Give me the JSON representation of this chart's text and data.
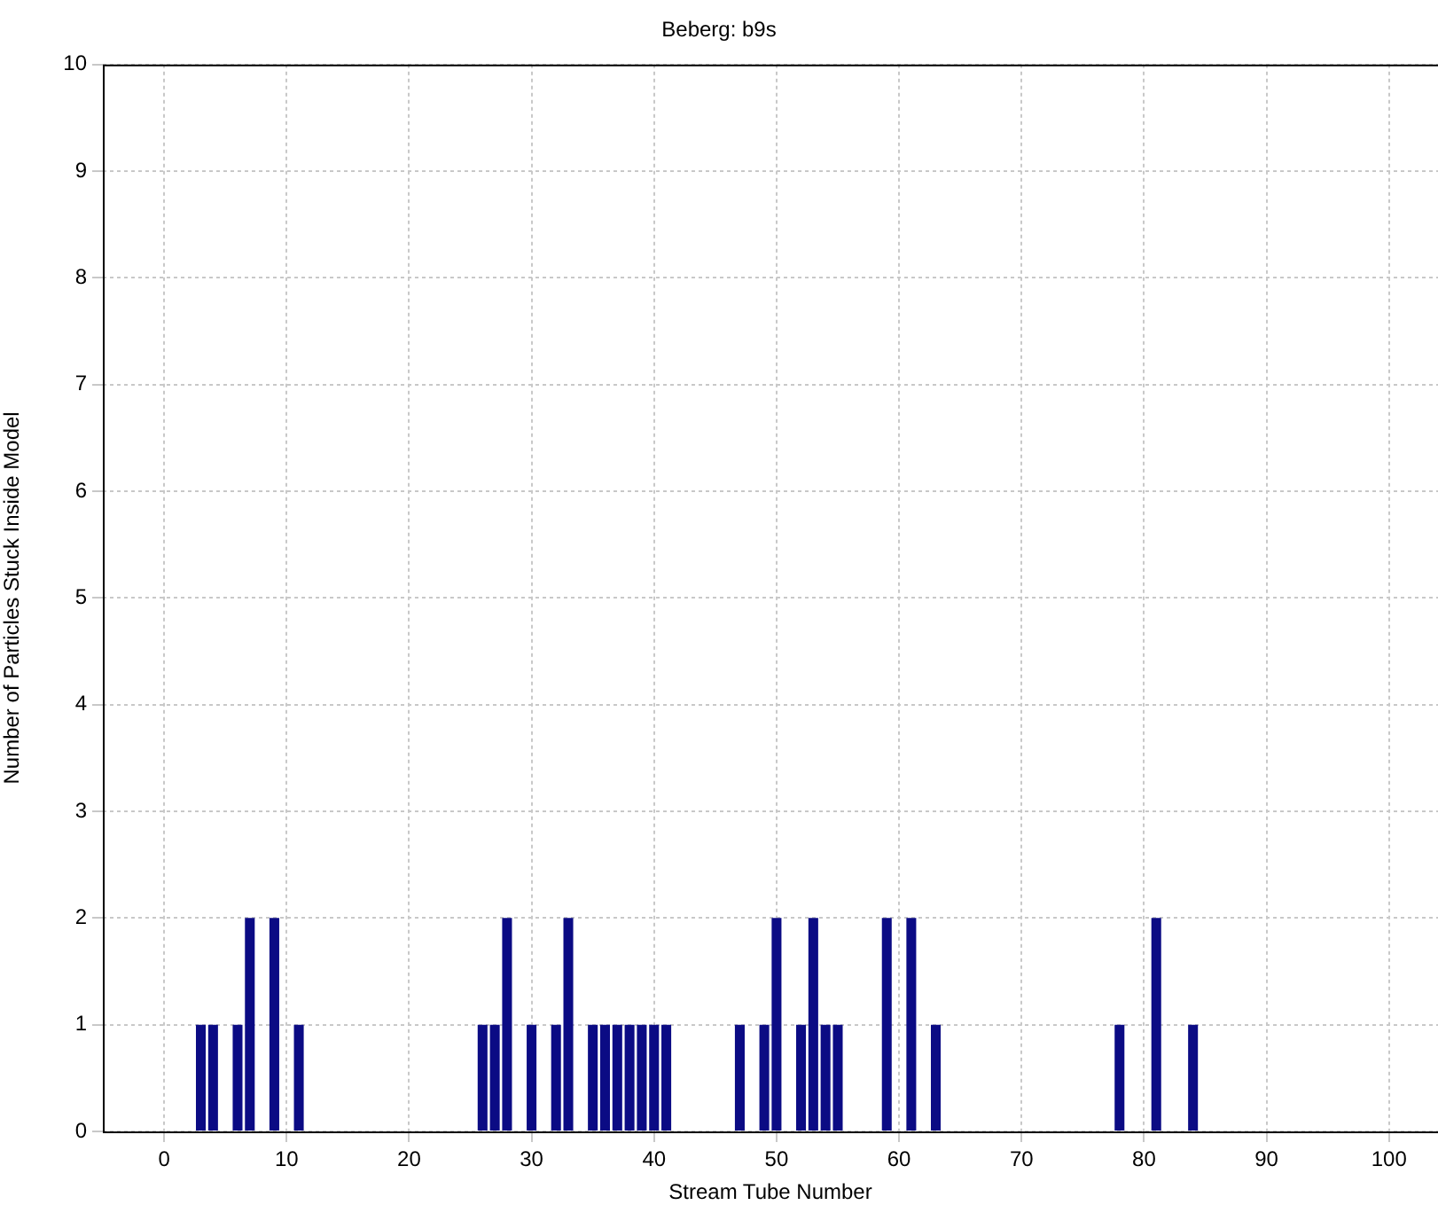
{
  "chart_data": {
    "type": "bar",
    "title": "Beberg: b9s",
    "xlabel": "Stream Tube Number",
    "ylabel": "Number of Particles Stuck Inside Model",
    "x": [
      3,
      4,
      6,
      7,
      9,
      11,
      26,
      27,
      28,
      30,
      32,
      33,
      35,
      36,
      37,
      38,
      39,
      40,
      41,
      47,
      49,
      50,
      52,
      53,
      54,
      55,
      59,
      61,
      63,
      78,
      81,
      84
    ],
    "values": [
      1,
      1,
      1,
      2,
      2,
      1,
      1,
      1,
      2,
      1,
      1,
      2,
      1,
      1,
      1,
      1,
      1,
      1,
      1,
      1,
      1,
      2,
      1,
      2,
      1,
      1,
      2,
      2,
      1,
      1,
      2,
      1
    ],
    "color": "#0b0b84",
    "xlim": [
      -5,
      104
    ],
    "xticks": [
      0,
      10,
      20,
      30,
      40,
      50,
      60,
      70,
      80,
      90,
      100
    ],
    "ylim": [
      0,
      10
    ],
    "yticks": [
      0,
      1,
      2,
      3,
      4,
      5,
      6,
      7,
      8,
      9,
      10
    ],
    "grid": true
  }
}
